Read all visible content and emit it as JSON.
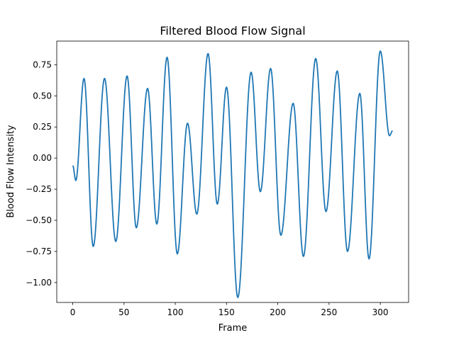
{
  "chart_data": {
    "type": "line",
    "title": "Filtered Blood Flow Signal",
    "xlabel": "Frame",
    "ylabel": "Blood Flow Intensity",
    "xlim": [
      -15.6,
      327.6
    ],
    "ylim": [
      -1.16,
      0.94
    ],
    "xticks": [
      0,
      50,
      100,
      150,
      200,
      250,
      300
    ],
    "yticks": [
      -1.0,
      -0.75,
      -0.5,
      -0.25,
      0.0,
      0.25,
      0.5,
      0.75
    ],
    "xtick_labels": [
      "0",
      "50",
      "100",
      "150",
      "200",
      "250",
      "300"
    ],
    "ytick_labels": [
      "−1.00",
      "−0.75",
      "−0.50",
      "−0.25",
      "0.00",
      "0.25",
      "0.50",
      "0.75"
    ],
    "grid": false,
    "line_color": "#1f77b4",
    "series": [
      {
        "x": [
          0,
          3,
          11,
          20,
          31,
          42,
          53,
          62,
          73,
          82,
          92,
          102,
          112,
          121,
          132,
          141,
          150,
          161,
          174,
          183,
          193,
          203,
          215,
          225,
          237,
          247,
          258,
          268,
          280,
          289,
          300,
          309,
          312
        ],
        "y": [
          -0.06,
          -0.18,
          0.64,
          -0.71,
          0.64,
          -0.67,
          0.66,
          -0.56,
          0.56,
          -0.53,
          0.81,
          -0.77,
          0.28,
          -0.45,
          0.84,
          -0.37,
          0.57,
          -1.12,
          0.69,
          -0.27,
          0.72,
          -0.62,
          0.44,
          -0.79,
          0.8,
          -0.43,
          0.7,
          -0.75,
          0.52,
          -0.81,
          0.86,
          0.18,
          0.22
        ]
      }
    ]
  }
}
